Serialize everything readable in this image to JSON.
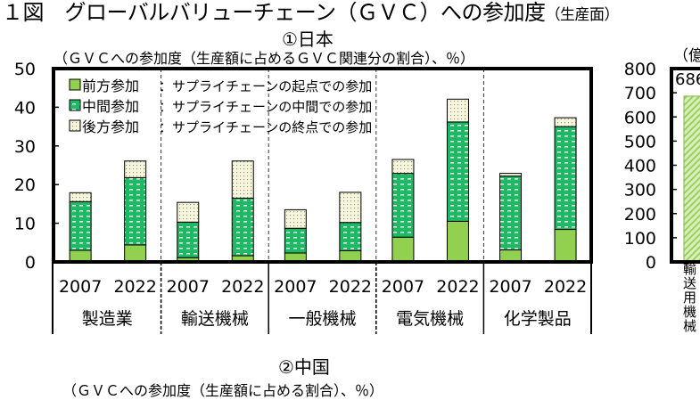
{
  "figure_title": "１図　グローバルバリューチェーン（ＧＶＣ）への参加度",
  "figure_title_suffix": "（生産面）",
  "chart_data": [
    {
      "type": "bar",
      "stacked": true,
      "title": "①日本",
      "ylabel": "（ＧＶＣへの参加度（生産額に占めるＧＶＣ関連分の割合）、％）",
      "ylim": [
        0,
        50
      ],
      "yticks": [
        "0",
        "10",
        "20",
        "30",
        "40",
        "50"
      ],
      "groups": [
        "製造業",
        "輸送機械",
        "一般機械",
        "電気機械",
        "化学製品"
      ],
      "years": [
        "2007",
        "2022"
      ],
      "legend_position": "top-left",
      "series": [
        {
          "name": "前方参加",
          "description": "：サプライチェーンの起点での参加",
          "color": "#92d050",
          "values": [
            3.0,
            4.4,
            1.1,
            1.6,
            2.3,
            2.9,
            6.4,
            10.5,
            3.1,
            8.4
          ]
        },
        {
          "name": "中間参加",
          "description": "：サプライチェーンの中間での参加",
          "color": "#21b865",
          "values": [
            12.6,
            17.4,
            9.2,
            14.9,
            6.4,
            7.3,
            16.5,
            25.7,
            19.1,
            26.6
          ]
        },
        {
          "name": "後方参加",
          "description": "：サプライチェーンの終点での参加",
          "color": "#f3f2d8",
          "values": [
            2.3,
            4.3,
            5.1,
            9.6,
            4.8,
            7.8,
            3.6,
            5.9,
            0.7,
            2.3
          ]
        }
      ]
    },
    {
      "type": "bar",
      "partial": true,
      "ylabel": "（億",
      "ylim": [
        0,
        800
      ],
      "yticks": [
        "0",
        "100",
        "200",
        "300",
        "400",
        "500",
        "600",
        "700",
        "800"
      ],
      "categories": [
        "輸送用機械"
      ],
      "values": [
        686
      ],
      "data_labels": [
        "686"
      ],
      "color": "#a9d86e"
    }
  ],
  "panel2": {
    "title": "②中国",
    "subtitle": "（ＧＶＣへの参加度（生産額に占める割合）、％）"
  }
}
